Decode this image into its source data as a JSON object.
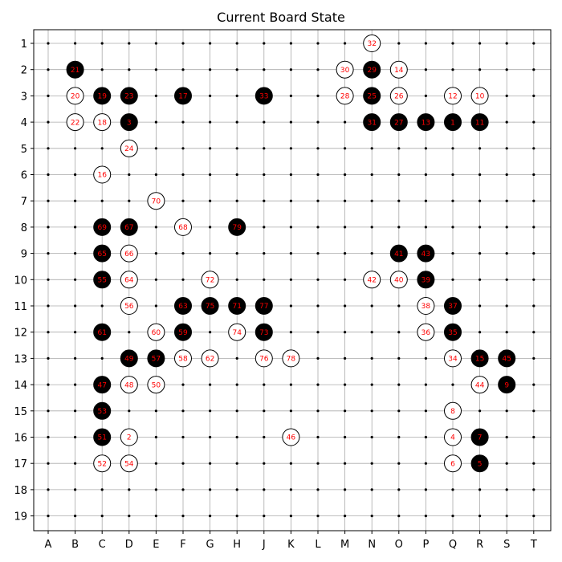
{
  "title": "Current Board State",
  "board": {
    "size": 19,
    "columns": [
      "A",
      "B",
      "C",
      "D",
      "E",
      "F",
      "G",
      "H",
      "J",
      "K",
      "L",
      "M",
      "N",
      "O",
      "P",
      "Q",
      "R",
      "S",
      "T"
    ],
    "rows": [
      1,
      2,
      3,
      4,
      5,
      6,
      7,
      8,
      9,
      10,
      11,
      12,
      13,
      14,
      15,
      16,
      17,
      18,
      19
    ],
    "colors": {
      "black": "#000000",
      "white": "#ffffff",
      "number": "#ff0000",
      "grid": "#aaaaaa"
    },
    "stones": [
      {
        "col": "N",
        "row": 1,
        "color": "white",
        "n": "32"
      },
      {
        "col": "B",
        "row": 2,
        "color": "black",
        "n": "21"
      },
      {
        "col": "M",
        "row": 2,
        "color": "white",
        "n": "30"
      },
      {
        "col": "N",
        "row": 2,
        "color": "black",
        "n": "29"
      },
      {
        "col": "O",
        "row": 2,
        "color": "white",
        "n": "14"
      },
      {
        "col": "B",
        "row": 3,
        "color": "white",
        "n": "20"
      },
      {
        "col": "C",
        "row": 3,
        "color": "black",
        "n": "19"
      },
      {
        "col": "D",
        "row": 3,
        "color": "black",
        "n": "23"
      },
      {
        "col": "F",
        "row": 3,
        "color": "black",
        "n": "17"
      },
      {
        "col": "J",
        "row": 3,
        "color": "black",
        "n": "33"
      },
      {
        "col": "M",
        "row": 3,
        "color": "white",
        "n": "28"
      },
      {
        "col": "N",
        "row": 3,
        "color": "black",
        "n": "25"
      },
      {
        "col": "O",
        "row": 3,
        "color": "white",
        "n": "26"
      },
      {
        "col": "Q",
        "row": 3,
        "color": "white",
        "n": "12"
      },
      {
        "col": "R",
        "row": 3,
        "color": "white",
        "n": "10"
      },
      {
        "col": "B",
        "row": 4,
        "color": "white",
        "n": "22"
      },
      {
        "col": "C",
        "row": 4,
        "color": "white",
        "n": "18"
      },
      {
        "col": "D",
        "row": 4,
        "color": "black",
        "n": "3"
      },
      {
        "col": "N",
        "row": 4,
        "color": "black",
        "n": "31"
      },
      {
        "col": "O",
        "row": 4,
        "color": "black",
        "n": "27"
      },
      {
        "col": "P",
        "row": 4,
        "color": "black",
        "n": "13"
      },
      {
        "col": "Q",
        "row": 4,
        "color": "black",
        "n": "1"
      },
      {
        "col": "R",
        "row": 4,
        "color": "black",
        "n": "11"
      },
      {
        "col": "D",
        "row": 5,
        "color": "white",
        "n": "24"
      },
      {
        "col": "C",
        "row": 6,
        "color": "white",
        "n": "16"
      },
      {
        "col": "E",
        "row": 7,
        "color": "white",
        "n": "70"
      },
      {
        "col": "C",
        "row": 8,
        "color": "black",
        "n": "69"
      },
      {
        "col": "D",
        "row": 8,
        "color": "black",
        "n": "67"
      },
      {
        "col": "F",
        "row": 8,
        "color": "white",
        "n": "68"
      },
      {
        "col": "H",
        "row": 8,
        "color": "black",
        "n": "79"
      },
      {
        "col": "C",
        "row": 9,
        "color": "black",
        "n": "65"
      },
      {
        "col": "D",
        "row": 9,
        "color": "white",
        "n": "66"
      },
      {
        "col": "O",
        "row": 9,
        "color": "black",
        "n": "41"
      },
      {
        "col": "P",
        "row": 9,
        "color": "black",
        "n": "43"
      },
      {
        "col": "C",
        "row": 10,
        "color": "black",
        "n": "55"
      },
      {
        "col": "D",
        "row": 10,
        "color": "white",
        "n": "64"
      },
      {
        "col": "G",
        "row": 10,
        "color": "white",
        "n": "72"
      },
      {
        "col": "N",
        "row": 10,
        "color": "white",
        "n": "42"
      },
      {
        "col": "O",
        "row": 10,
        "color": "white",
        "n": "40"
      },
      {
        "col": "P",
        "row": 10,
        "color": "black",
        "n": "39"
      },
      {
        "col": "D",
        "row": 11,
        "color": "white",
        "n": "56"
      },
      {
        "col": "F",
        "row": 11,
        "color": "black",
        "n": "63"
      },
      {
        "col": "G",
        "row": 11,
        "color": "black",
        "n": "75"
      },
      {
        "col": "H",
        "row": 11,
        "color": "black",
        "n": "71"
      },
      {
        "col": "J",
        "row": 11,
        "color": "black",
        "n": "77"
      },
      {
        "col": "P",
        "row": 11,
        "color": "white",
        "n": "38"
      },
      {
        "col": "Q",
        "row": 11,
        "color": "black",
        "n": "37"
      },
      {
        "col": "C",
        "row": 12,
        "color": "black",
        "n": "61"
      },
      {
        "col": "E",
        "row": 12,
        "color": "white",
        "n": "60"
      },
      {
        "col": "F",
        "row": 12,
        "color": "black",
        "n": "59"
      },
      {
        "col": "H",
        "row": 12,
        "color": "white",
        "n": "74"
      },
      {
        "col": "J",
        "row": 12,
        "color": "black",
        "n": "73"
      },
      {
        "col": "P",
        "row": 12,
        "color": "white",
        "n": "36"
      },
      {
        "col": "Q",
        "row": 12,
        "color": "black",
        "n": "35"
      },
      {
        "col": "D",
        "row": 13,
        "color": "black",
        "n": "49"
      },
      {
        "col": "E",
        "row": 13,
        "color": "black",
        "n": "57"
      },
      {
        "col": "F",
        "row": 13,
        "color": "white",
        "n": "58"
      },
      {
        "col": "G",
        "row": 13,
        "color": "white",
        "n": "62"
      },
      {
        "col": "J",
        "row": 13,
        "color": "white",
        "n": "76"
      },
      {
        "col": "K",
        "row": 13,
        "color": "white",
        "n": "78"
      },
      {
        "col": "Q",
        "row": 13,
        "color": "white",
        "n": "34"
      },
      {
        "col": "R",
        "row": 13,
        "color": "black",
        "n": "15"
      },
      {
        "col": "S",
        "row": 13,
        "color": "black",
        "n": "45"
      },
      {
        "col": "C",
        "row": 14,
        "color": "black",
        "n": "47"
      },
      {
        "col": "D",
        "row": 14,
        "color": "white",
        "n": "48"
      },
      {
        "col": "E",
        "row": 14,
        "color": "white",
        "n": "50"
      },
      {
        "col": "R",
        "row": 14,
        "color": "white",
        "n": "44"
      },
      {
        "col": "S",
        "row": 14,
        "color": "black",
        "n": "9"
      },
      {
        "col": "C",
        "row": 15,
        "color": "black",
        "n": "53"
      },
      {
        "col": "Q",
        "row": 15,
        "color": "white",
        "n": "8"
      },
      {
        "col": "C",
        "row": 16,
        "color": "black",
        "n": "51"
      },
      {
        "col": "D",
        "row": 16,
        "color": "white",
        "n": "2"
      },
      {
        "col": "K",
        "row": 16,
        "color": "white",
        "n": "46"
      },
      {
        "col": "Q",
        "row": 16,
        "color": "white",
        "n": "4"
      },
      {
        "col": "R",
        "row": 16,
        "color": "black",
        "n": "7"
      },
      {
        "col": "C",
        "row": 17,
        "color": "white",
        "n": "52"
      },
      {
        "col": "D",
        "row": 17,
        "color": "white",
        "n": "54"
      },
      {
        "col": "Q",
        "row": 17,
        "color": "white",
        "n": "6"
      },
      {
        "col": "R",
        "row": 17,
        "color": "black",
        "n": "5"
      }
    ]
  }
}
